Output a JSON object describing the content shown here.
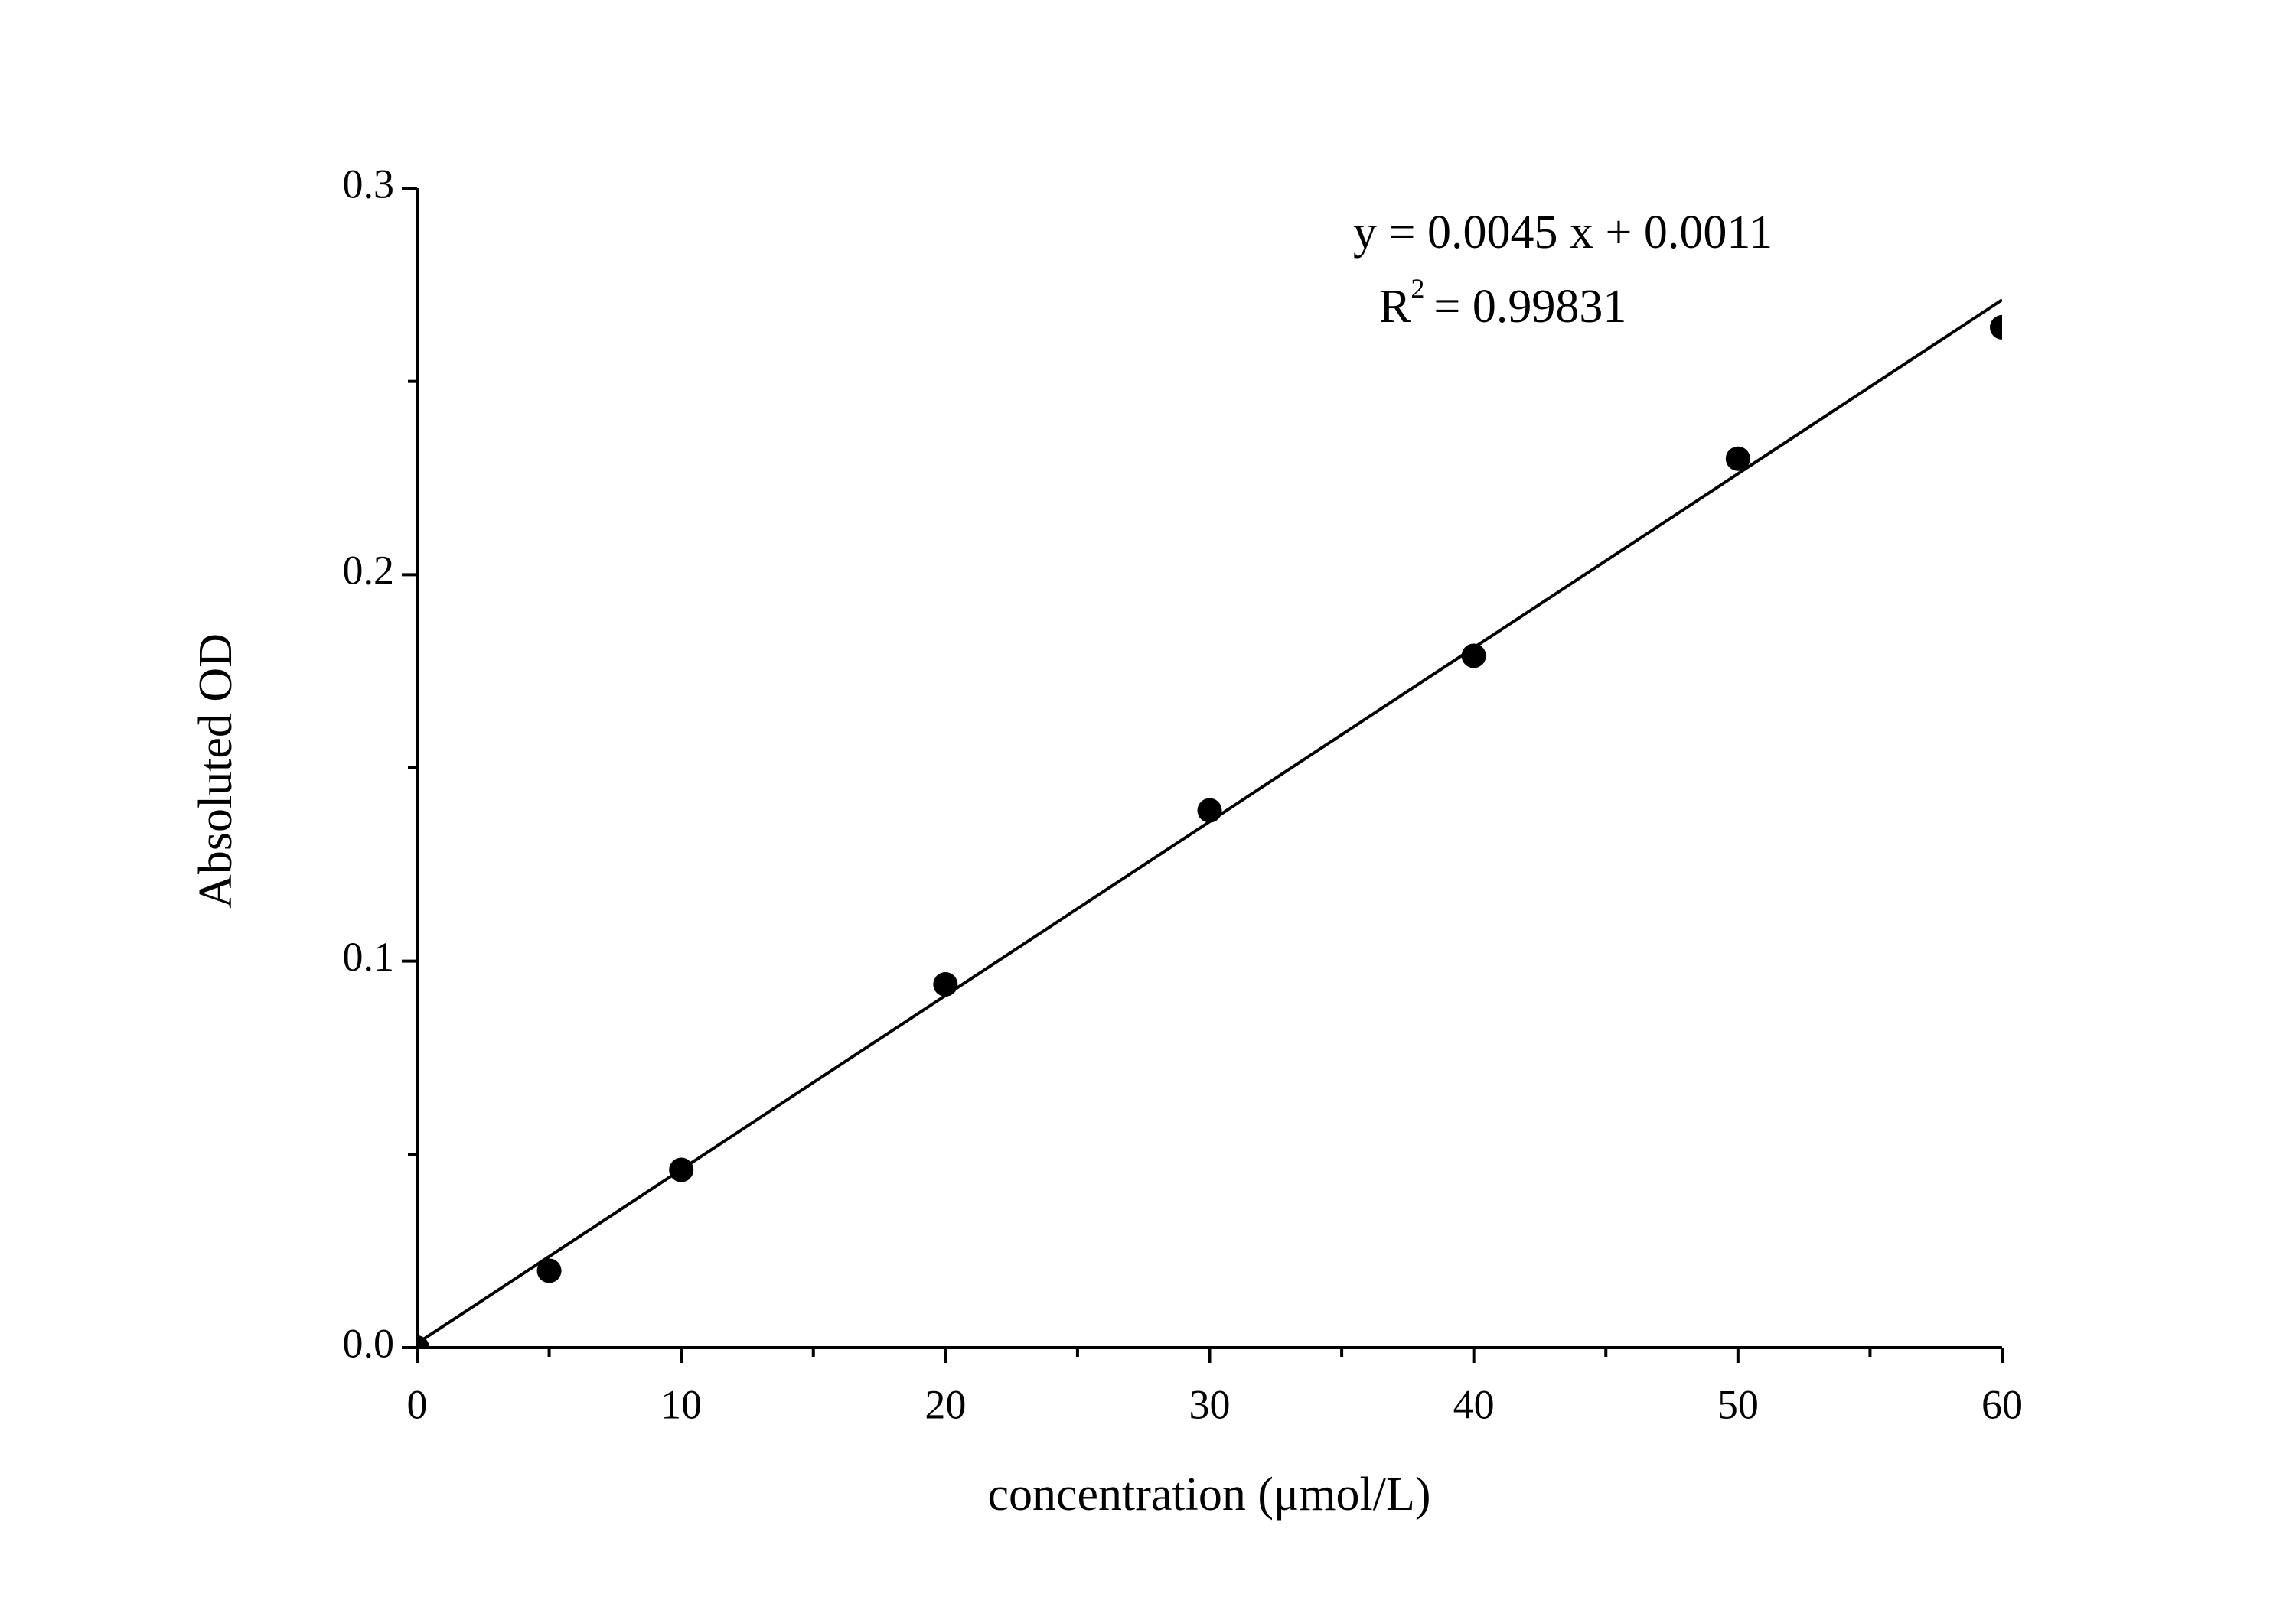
{
  "chart_data": {
    "type": "scatter",
    "x_label": "concentration (μmol/L)",
    "y_label": "Absoluted OD",
    "x": [
      0,
      5,
      10,
      20,
      30,
      40,
      50,
      60
    ],
    "values": [
      0,
      0.0199,
      0.046,
      0.094,
      0.139,
      0.179,
      0.23,
      0.264
    ],
    "color": "#000000",
    "fit_line": {
      "x": [
        0,
        60
      ],
      "values": [
        0.0011,
        0.2711
      ],
      "color": "#000000"
    },
    "annotation_equation": "y = 0.0045 x + 0.0011",
    "annotation_r2": {
      "base": "R",
      "sup": "2",
      "rest": "= 0.99831"
    },
    "xlim": [
      0,
      60
    ],
    "xticks": [
      0,
      10,
      20,
      30,
      40,
      50,
      60
    ],
    "xticks_minor": [
      5,
      15,
      25,
      35,
      45,
      55
    ],
    "ylim": [
      0,
      0.3
    ],
    "yticks": [
      {
        "value": 0,
        "label": "0.0"
      },
      0.1,
      0.2,
      0.3
    ],
    "yticks_minor": [
      0.05,
      0.15,
      0.25
    ],
    "grid": false
  }
}
